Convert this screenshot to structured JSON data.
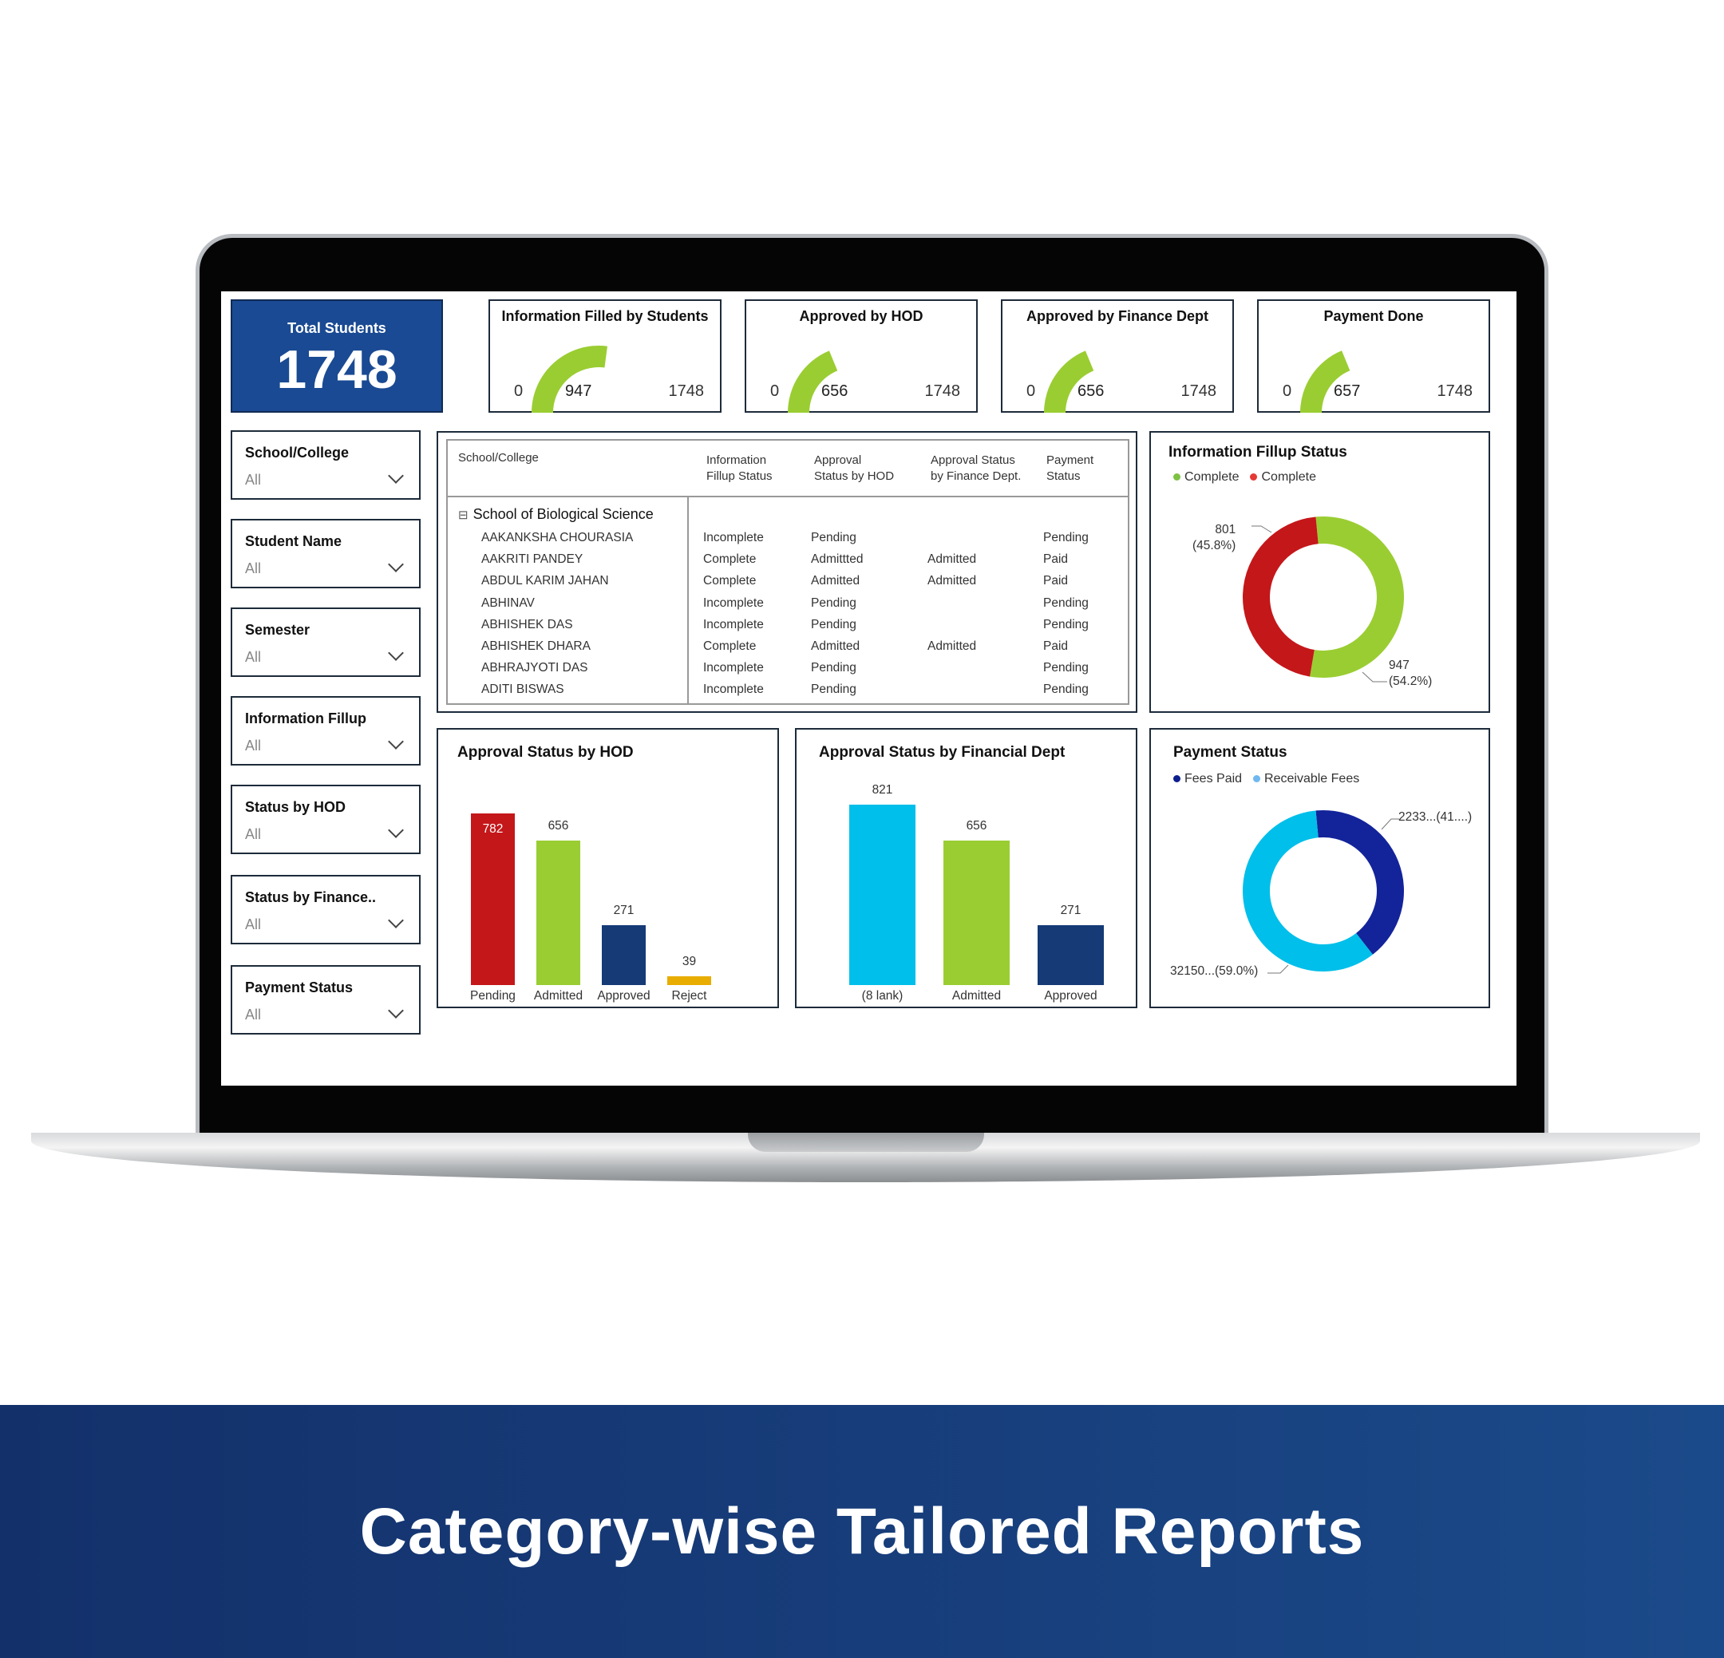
{
  "total": {
    "label": "Total Students",
    "value": "1748"
  },
  "kpis": [
    {
      "label": "Information Filled by Students",
      "min": "0",
      "value": 947,
      "max": 1748
    },
    {
      "label": "Approved by HOD",
      "min": "0",
      "value": 656,
      "max": 1748
    },
    {
      "label": "Approved by Finance Dept",
      "min": "0",
      "value": 656,
      "max": 1748
    },
    {
      "label": "Payment Done",
      "min": "0",
      "value": 657,
      "max": 1748
    }
  ],
  "gauge_color": "#9acd32",
  "filters": [
    {
      "label": "School/College",
      "value": "All"
    },
    {
      "label": "Student Name",
      "value": "All"
    },
    {
      "label": "Semester",
      "value": "All"
    },
    {
      "label": "Information Fillup",
      "value": "All"
    },
    {
      "label": "Status by HOD",
      "value": "All"
    },
    {
      "label": "Status by Finance..",
      "value": "All"
    },
    {
      "label": "Payment Status",
      "value": "All"
    }
  ],
  "table": {
    "headers": [
      "School/College",
      "Information\nFillup Status",
      "Approval\nStatus by HOD",
      "Approval Status\nby Finance Dept.",
      "Payment\nStatus"
    ],
    "group": "School of Biological Science",
    "rows": [
      [
        "AAKANKSHA CHOURASIA",
        "Incomplete",
        "Pending",
        "",
        "Pending"
      ],
      [
        "AAKRITI PANDEY",
        "Complete",
        "Admittted",
        "Admitted",
        "Paid"
      ],
      [
        "ABDUL KARIM JAHAN",
        "Complete",
        "Admitted",
        "Admitted",
        "Paid"
      ],
      [
        "ABHINAV",
        "Incomplete",
        "Pending",
        "",
        "Pending"
      ],
      [
        "ABHISHEK DAS",
        "Incomplete",
        "Pending",
        "",
        "Pending"
      ],
      [
        "ABHISHEK DHARA",
        "Complete",
        "Admitted",
        "Admitted",
        "Paid"
      ],
      [
        "ABHRAJYOTI DAS",
        "Incomplete",
        "Pending",
        "",
        "Pending"
      ],
      [
        "ADITI BISWAS",
        "Incomplete",
        "Pending",
        "",
        "Pending"
      ]
    ]
  },
  "chart_data": [
    {
      "type": "pie",
      "title": "Information Fillup Status",
      "legend": [
        "Complete",
        "Complete"
      ],
      "legend_colors": [
        "#7dc242",
        "#e53935"
      ],
      "slices": [
        {
          "value": 947,
          "label": "947\n(54.2%)",
          "color": "#9acd32"
        },
        {
          "value": 801,
          "label": "801\n(45.8%)",
          "color": "#c4171a"
        }
      ]
    },
    {
      "type": "bar",
      "title": "Approval Status by HOD",
      "categories": [
        "Pending",
        "Admitted",
        "Approved",
        "Reject"
      ],
      "values": [
        782,
        656,
        271,
        39
      ],
      "colors": [
        "#c4171a",
        "#9acd32",
        "#153a75",
        "#e8ad00"
      ]
    },
    {
      "type": "bar",
      "title": "Approval Status by Financial Dept",
      "categories": [
        "(8 lank)",
        "Admitted",
        "Approved"
      ],
      "values": [
        821,
        656,
        271
      ],
      "colors": [
        "#00bfea",
        "#9acd32",
        "#153a75"
      ]
    },
    {
      "type": "pie",
      "title": "Payment Status",
      "legend": [
        "Fees Paid",
        "Receivable Fees"
      ],
      "legend_colors": [
        "#0d1f8c",
        "#6fb8f0"
      ],
      "slices": [
        {
          "value": 41,
          "label": "2233...(41....)",
          "color": "#13249a"
        },
        {
          "value": 59,
          "label": "32150...(59.0%)",
          "color": "#00bfea"
        }
      ]
    }
  ],
  "banner": "Category-wise Tailored Reports"
}
